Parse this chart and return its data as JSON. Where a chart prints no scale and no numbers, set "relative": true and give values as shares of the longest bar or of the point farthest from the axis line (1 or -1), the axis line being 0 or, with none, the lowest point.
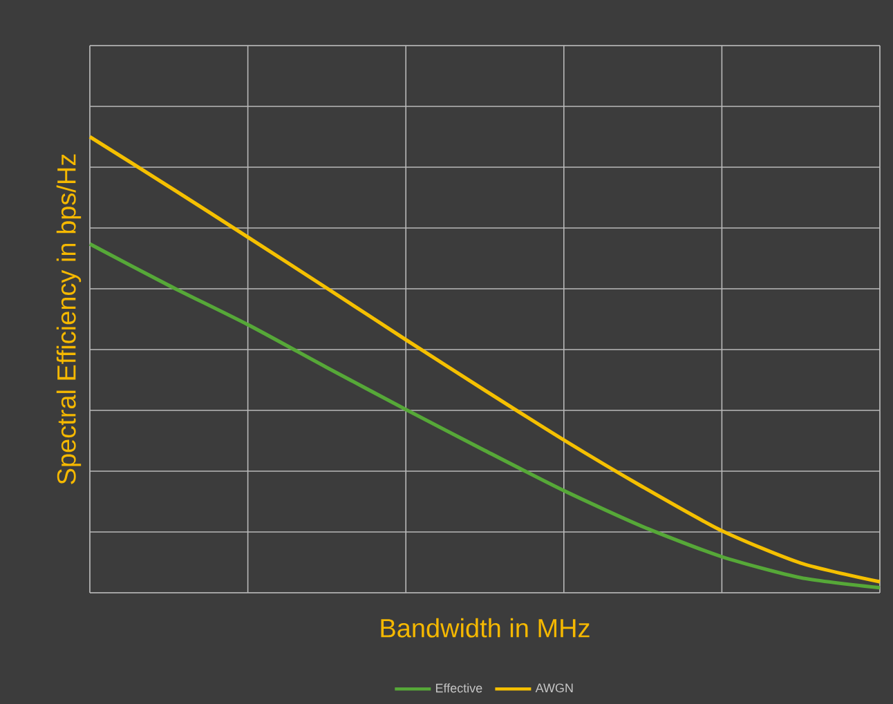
{
  "chart_data": {
    "type": "line",
    "xlabel": "Bandwidth in MHz",
    "ylabel": "Spectral Efficiency in bps/Hz",
    "relative": true,
    "grid": true,
    "legend": "bottom",
    "marker": "none",
    "line_style": "solid",
    "categories": [
      null,
      null,
      null,
      null,
      null,
      null,
      null,
      null,
      null,
      null,
      null
    ],
    "series": [
      {
        "name": "Effective",
        "color": "#56a838",
        "values": [
          0.765,
          0.674,
          0.588,
          0.494,
          0.402,
          0.312,
          0.224,
          0.145,
          0.079,
          0.033,
          0.011
        ]
      },
      {
        "name": "AWGN",
        "color": "#f5c000",
        "values": [
          1,
          0.891,
          0.78,
          0.668,
          0.555,
          0.444,
          0.335,
          0.232,
          0.136,
          0.065,
          0.024
        ]
      }
    ]
  }
}
